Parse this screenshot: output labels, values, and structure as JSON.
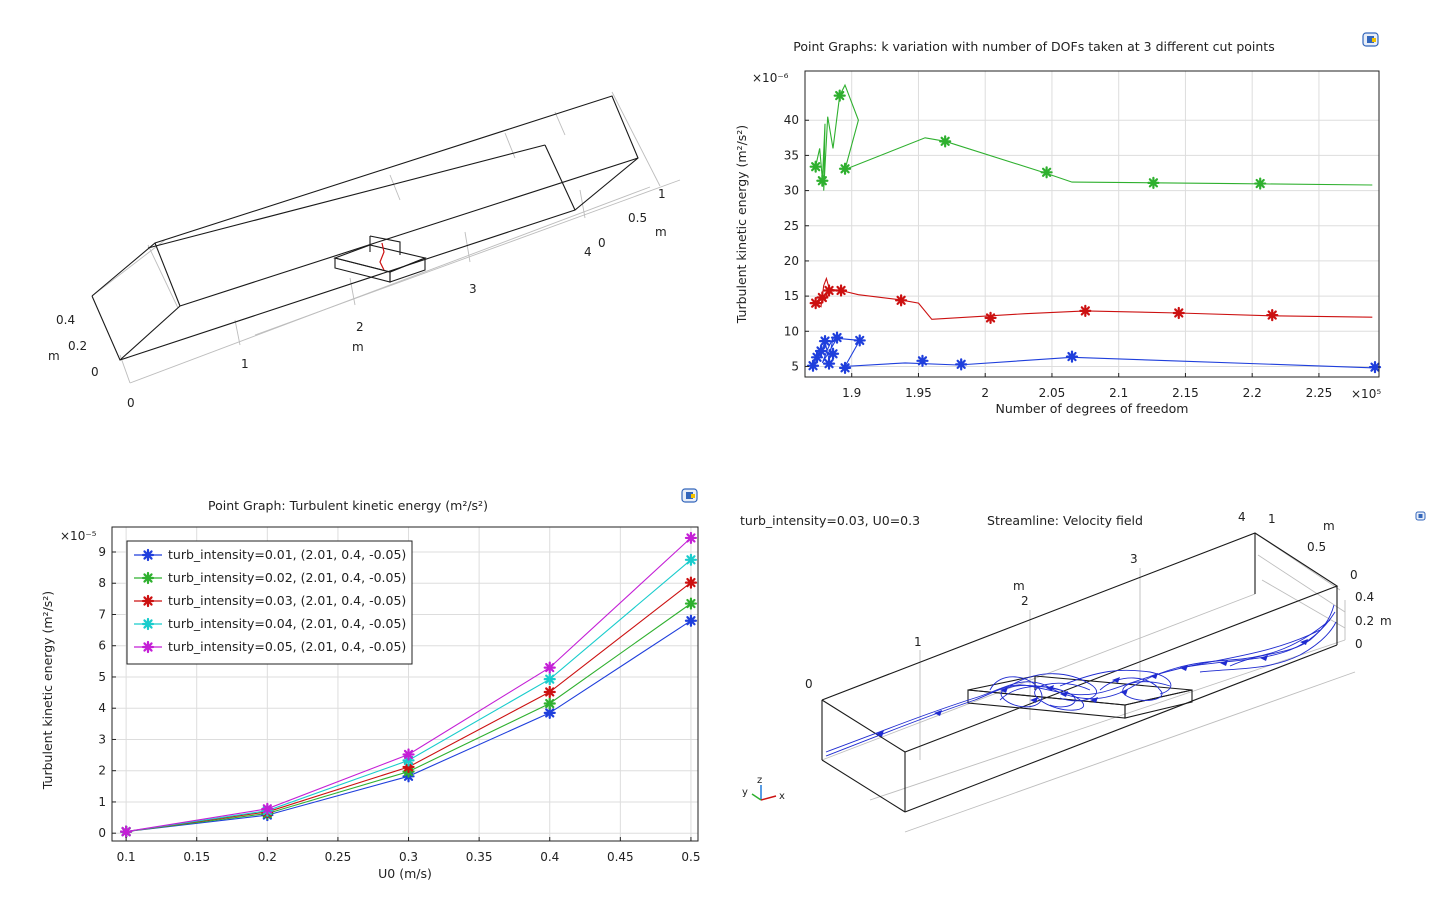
{
  "chart_data": [
    {
      "id": "geom",
      "type": "3d-geometry",
      "axis1_ticks": [
        "0.4",
        "0.2",
        "0"
      ],
      "axis1_unit": "m",
      "axis2_ticks": [
        "0",
        "1",
        "2",
        "3",
        "4"
      ],
      "axis2_unit": "m",
      "axis3_ticks": [
        "1",
        "0.5",
        "0"
      ],
      "axis3_unit": "m"
    },
    {
      "id": "dof",
      "type": "line",
      "title": "Point Graphs: k variation with number of DOFs taken at 3 different cut points",
      "xlabel": "Number of degrees of freedom",
      "ylabel": "Turbulent kinetic energy (m²/s²)",
      "x_multiplier": "×10⁵",
      "y_multiplier": "×10⁻⁶",
      "xlim": [
        186500,
        229500
      ],
      "ylim": [
        3.5,
        47
      ],
      "xticks": [
        190000,
        195000,
        200000,
        205000,
        210000,
        215000,
        220000,
        225000
      ],
      "xtick_labels": [
        "1.9",
        "1.95",
        "2",
        "2.05",
        "2.1",
        "2.15",
        "2.2",
        "2.25"
      ],
      "yticks": [
        5,
        10,
        15,
        20,
        25,
        30,
        35,
        40
      ],
      "ytick_labels": [
        "5",
        "10",
        "15",
        "20",
        "25",
        "30",
        "35",
        "40"
      ],
      "grid": true,
      "series": [
        {
          "color": "#2fb02f",
          "x": [
            187300,
            187600,
            187800,
            188000,
            187900,
            188200,
            188600,
            189100,
            189500,
            190500,
            189500,
            195500,
            197000,
            204500,
            206500,
            212500,
            218500,
            229000
          ],
          "y": [
            33.5,
            36.0,
            31.5,
            39.5,
            30.0,
            40.5,
            36.0,
            43.5,
            45.0,
            40.0,
            33.0,
            37.5,
            37.0,
            32.5,
            31.2,
            31.1,
            31.0,
            30.8
          ],
          "markers_x": [
            187300,
            187800,
            189100,
            189500,
            197000,
            204600,
            212600,
            220600
          ],
          "markers_y": [
            33.4,
            31.4,
            43.5,
            33.1,
            37.0,
            32.6,
            31.1,
            31.0
          ]
        },
        {
          "color": "#cc1111",
          "x": [
            187300,
            187700,
            187900,
            188100,
            188400,
            188000,
            188300,
            189200,
            190500,
            193500,
            195000,
            196000,
            203000,
            207500,
            214500,
            221500,
            229000
          ],
          "y": [
            14.0,
            13.5,
            16.5,
            17.5,
            15.5,
            14.5,
            16.0,
            15.8,
            15.2,
            14.5,
            14.0,
            11.7,
            12.5,
            12.9,
            12.6,
            12.2,
            12.0
          ],
          "markers_x": [
            187300,
            187800,
            188300,
            189200,
            193700,
            200400,
            207500,
            214500,
            221500
          ],
          "markers_y": [
            14.0,
            14.8,
            15.8,
            15.8,
            14.4,
            11.9,
            12.9,
            12.6,
            12.3
          ]
        },
        {
          "color": "#1f3fdc",
          "x": [
            187100,
            187400,
            187700,
            188000,
            188300,
            188600,
            188200,
            187800,
            188900,
            190600,
            189500,
            194000,
            198000,
            206500,
            214000,
            229200
          ],
          "y": [
            5.0,
            6.5,
            7.0,
            8.5,
            6.0,
            9.0,
            7.5,
            5.5,
            9.0,
            8.7,
            5.0,
            5.5,
            5.2,
            6.3,
            5.8,
            4.8
          ],
          "markers_x": [
            187100,
            187400,
            187700,
            188000,
            188300,
            188600,
            188900,
            190600,
            189500,
            195300,
            198200,
            206500,
            229200
          ],
          "markers_y": [
            5.1,
            6.3,
            7.2,
            8.6,
            5.4,
            6.8,
            9.1,
            8.7,
            4.8,
            5.8,
            5.3,
            6.4,
            4.9
          ]
        }
      ]
    },
    {
      "id": "ke",
      "type": "line",
      "title": "Point Graph: Turbulent kinetic energy (m²/s²)",
      "xlabel": "U0 (m/s)",
      "ylabel": "Turbulent kinetic energy (m²/s²)",
      "y_multiplier": "×10⁻⁵",
      "xlim": [
        0.09,
        0.505
      ],
      "ylim": [
        -0.25,
        9.8
      ],
      "xticks": [
        0.1,
        0.15,
        0.2,
        0.25,
        0.3,
        0.35,
        0.4,
        0.45,
        0.5
      ],
      "xtick_labels": [
        "0.1",
        "0.15",
        "0.2",
        "0.25",
        "0.3",
        "0.35",
        "0.4",
        "0.45",
        "0.5"
      ],
      "yticks": [
        0,
        1,
        2,
        3,
        4,
        5,
        6,
        7,
        8,
        9
      ],
      "ytick_labels": [
        "0",
        "1",
        "2",
        "3",
        "4",
        "5",
        "6",
        "7",
        "8",
        "9"
      ],
      "grid": true,
      "legend_position": "top-left",
      "x": [
        0.1,
        0.2,
        0.3,
        0.4,
        0.5
      ],
      "series": [
        {
          "name": "turb_intensity=0.01, (2.01, 0.4, -0.05)",
          "color": "#1f3fdc",
          "values": [
            0.05,
            0.58,
            1.82,
            3.85,
            6.8
          ]
        },
        {
          "name": "turb_intensity=0.02, (2.01, 0.4, -0.05)",
          "color": "#2fb02f",
          "values": [
            0.05,
            0.63,
            1.97,
            4.15,
            7.35
          ]
        },
        {
          "name": "turb_intensity=0.03, (2.01, 0.4, -0.05)",
          "color": "#cc1111",
          "values": [
            0.05,
            0.68,
            2.12,
            4.52,
            8.02
          ]
        },
        {
          "name": "turb_intensity=0.04, (2.01, 0.4, -0.05)",
          "color": "#19cccc",
          "values": [
            0.05,
            0.72,
            2.33,
            4.93,
            8.75
          ]
        },
        {
          "name": "turb_intensity=0.05, (2.01, 0.4, -0.05)",
          "color": "#c41fd6",
          "values": [
            0.05,
            0.78,
            2.52,
            5.3,
            9.45
          ]
        }
      ]
    },
    {
      "id": "stream",
      "type": "3d-streamline",
      "subtitle": "turb_intensity=0.03, U0=0.3",
      "title": "Streamline: Velocity field",
      "axis_x_ticks": [
        "0",
        "1",
        "2",
        "3",
        "4"
      ],
      "axis_x_unit": "m",
      "axis_y_ticks": [
        "1",
        "0.5",
        "0"
      ],
      "axis_y_unit": "m",
      "axis_z_ticks": [
        "0.4",
        "0.2",
        "0"
      ],
      "axis_z_unit": "m",
      "triad": {
        "x": "x",
        "y": "y",
        "z": "z"
      }
    }
  ]
}
